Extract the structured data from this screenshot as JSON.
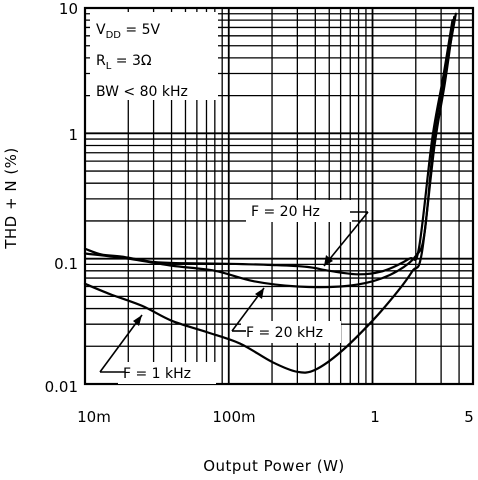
{
  "chart_data": {
    "type": "line",
    "xlabel": "Output Power (W)",
    "ylabel": "THD + N (%)",
    "x_scale": "log",
    "y_scale": "log",
    "xlim": [
      0.01,
      5
    ],
    "ylim": [
      0.01,
      10
    ],
    "grid": true,
    "x_ticks": [
      {
        "value": 0.01,
        "label": "10m"
      },
      {
        "value": 0.1,
        "label": "100m"
      },
      {
        "value": 1,
        "label": "1"
      },
      {
        "value": 5,
        "label": "5"
      }
    ],
    "y_ticks": [
      {
        "value": 10,
        "label": "10"
      },
      {
        "value": 1,
        "label": "1"
      },
      {
        "value": 0.1,
        "label": "0.1"
      },
      {
        "value": 0.01,
        "label": "0.01"
      }
    ],
    "conditions": {
      "vdd_main": "V",
      "vdd_sub": "DD",
      "vdd_value": " = 5V",
      "rl_main": "R",
      "rl_sub": "L",
      "rl_value": " = 3Ω",
      "bw": "BW < 80 kHz"
    },
    "series": [
      {
        "name": "F = 20 Hz",
        "x": [
          0.01,
          0.013,
          0.018,
          0.03,
          0.05,
          0.1,
          0.2,
          0.35,
          0.5,
          0.8,
          1.2,
          1.8,
          2.1,
          2.6,
          3.1,
          3.6
        ],
        "y": [
          0.12,
          0.108,
          0.104,
          0.094,
          0.092,
          0.091,
          0.089,
          0.086,
          0.08,
          0.075,
          0.08,
          0.1,
          0.12,
          0.9,
          2.8,
          8.0
        ]
      },
      {
        "name": "F = 20 kHz",
        "x": [
          0.01,
          0.02,
          0.04,
          0.08,
          0.15,
          0.3,
          0.6,
          1.0,
          1.5,
          2.0,
          2.3,
          2.7,
          3.2,
          3.8
        ],
        "y": [
          0.11,
          0.1,
          0.088,
          0.08,
          0.066,
          0.06,
          0.06,
          0.066,
          0.08,
          0.105,
          0.16,
          1.0,
          3.0,
          9.0
        ]
      },
      {
        "name": "F = 1 kHz",
        "x": [
          0.01,
          0.015,
          0.025,
          0.04,
          0.07,
          0.12,
          0.2,
          0.3,
          0.4,
          0.6,
          1.0,
          1.5,
          1.9,
          2.2,
          2.7,
          3.2,
          3.7
        ],
        "y": [
          0.063,
          0.052,
          0.042,
          0.032,
          0.026,
          0.021,
          0.015,
          0.0125,
          0.013,
          0.018,
          0.032,
          0.055,
          0.08,
          0.11,
          0.8,
          2.6,
          8.5
        ]
      }
    ],
    "annotations": [
      {
        "label": "F = 20 Hz",
        "target_x": 0.45,
        "target_y": 0.086
      },
      {
        "label": "F = 20 kHz",
        "target_x": 0.18,
        "target_y": 0.063
      },
      {
        "label": "F = 1 kHz",
        "target_x": 0.025,
        "target_y": 0.037
      }
    ]
  }
}
